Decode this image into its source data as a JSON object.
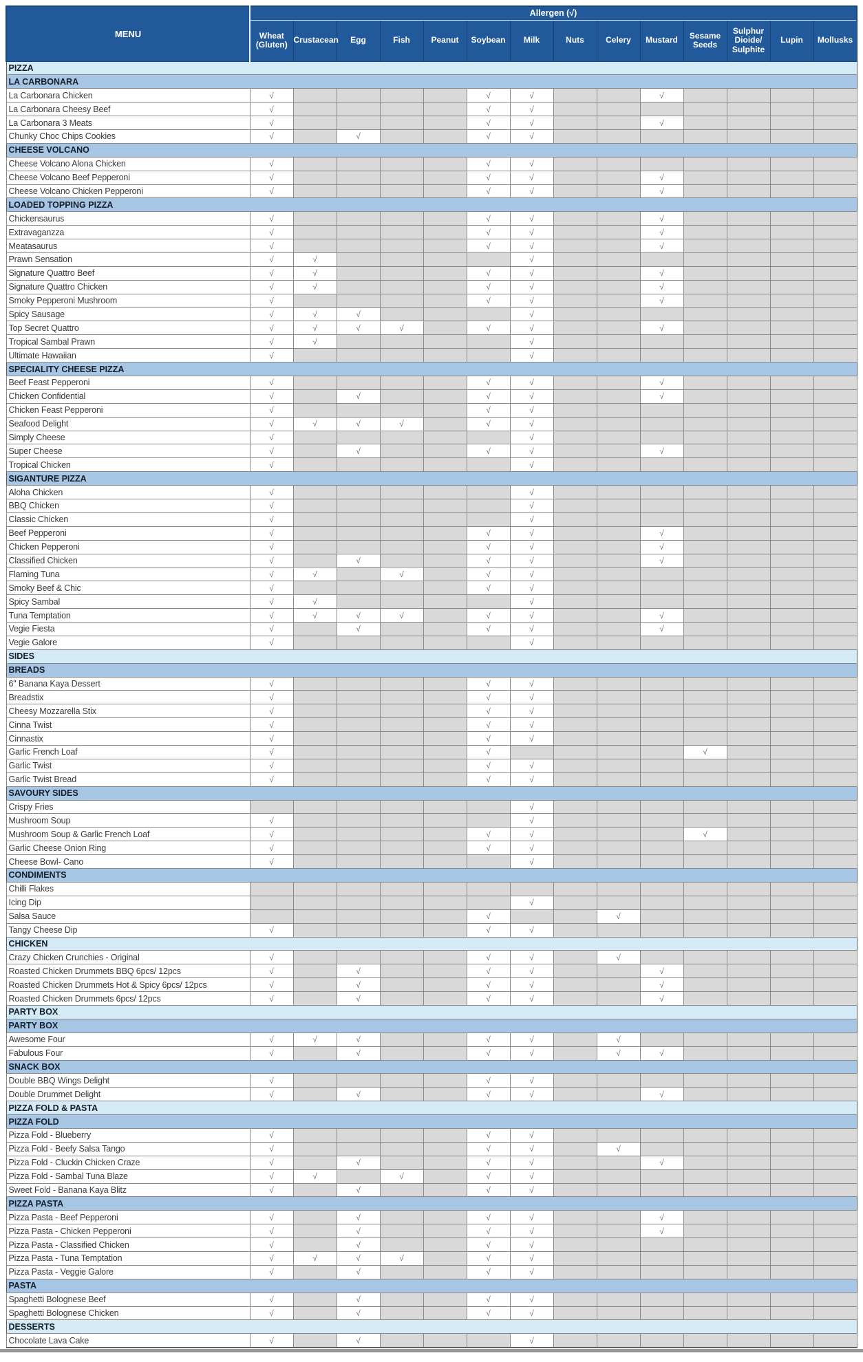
{
  "table": {
    "menu_header": "MENU",
    "allergen_header": "Allergen (√)",
    "check_symbol": "√",
    "columns": [
      "Wheat (Gluten)",
      "Crustacean",
      "Egg",
      "Fish",
      "Peanut",
      "Soybean",
      "Milk",
      "Nuts",
      "Celery",
      "Mustard",
      "Sesame Seeds",
      "Sulphur Dioide/ Sulphite",
      "Lupin",
      "Mollusks"
    ],
    "colors": {
      "header_blue": "#21599A",
      "section_light_blue": "#D4EAF6",
      "section_medium_blue": "#A6C6E4",
      "empty_cell_gray": "#D9D9D9",
      "checked_cell_white": "#FFFFFF",
      "grid_line_gray": "#8A8A8A",
      "check_mark_gray": "#6F6F6F",
      "header_text_white": "#FFFFFF"
    },
    "rows": [
      {
        "type": "section-light",
        "label": "PIZZA"
      },
      {
        "type": "section-blue",
        "label": "LA CARBONARA"
      },
      {
        "type": "item",
        "label": "La Carbonara Chicken",
        "checks": [
          0,
          5,
          6,
          9
        ]
      },
      {
        "type": "item",
        "label": "La Carbonara Cheesy Beef",
        "checks": [
          0,
          5,
          6
        ]
      },
      {
        "type": "item",
        "label": "La Carbonara 3 Meats",
        "checks": [
          0,
          5,
          6,
          9
        ]
      },
      {
        "type": "item",
        "label": "Chunky Choc Chips Cookies",
        "checks": [
          0,
          2,
          5,
          6
        ]
      },
      {
        "type": "section-blue",
        "label": "CHEESE VOLCANO"
      },
      {
        "type": "item",
        "label": "Cheese Volcano Alona Chicken",
        "checks": [
          0,
          5,
          6
        ]
      },
      {
        "type": "item",
        "label": "Cheese Volcano Beef Pepperoni",
        "checks": [
          0,
          5,
          6,
          9
        ]
      },
      {
        "type": "item",
        "label": "Cheese Volcano Chicken Pepperoni",
        "checks": [
          0,
          5,
          6,
          9
        ]
      },
      {
        "type": "section-blue",
        "label": "LOADED TOPPING PIZZA"
      },
      {
        "type": "item",
        "label": "Chickensaurus",
        "checks": [
          0,
          5,
          6,
          9
        ]
      },
      {
        "type": "item",
        "label": "Extravaganzza",
        "checks": [
          0,
          5,
          6,
          9
        ]
      },
      {
        "type": "item",
        "label": "Meatasaurus",
        "checks": [
          0,
          5,
          6,
          9
        ]
      },
      {
        "type": "item",
        "label": "Prawn Sensation",
        "checks": [
          0,
          1,
          6
        ]
      },
      {
        "type": "item",
        "label": "Signature Quattro Beef",
        "checks": [
          0,
          1,
          5,
          6,
          9
        ]
      },
      {
        "type": "item",
        "label": "Signature Quattro Chicken",
        "checks": [
          0,
          1,
          5,
          6,
          9
        ]
      },
      {
        "type": "item",
        "label": "Smoky Pepperoni Mushroom",
        "checks": [
          0,
          5,
          6,
          9
        ]
      },
      {
        "type": "item",
        "label": "Spicy Sausage",
        "checks": [
          0,
          1,
          2,
          6
        ]
      },
      {
        "type": "item",
        "label": "Top Secret Quattro",
        "checks": [
          0,
          1,
          2,
          3,
          5,
          6,
          9
        ]
      },
      {
        "type": "item",
        "label": "Tropical Sambal Prawn",
        "checks": [
          0,
          1,
          6
        ]
      },
      {
        "type": "item",
        "label": "Ultimate Hawaiian",
        "checks": [
          0,
          6
        ]
      },
      {
        "type": "section-blue",
        "label": "SPECIALITY CHEESE PIZZA"
      },
      {
        "type": "item",
        "label": "Beef Feast Pepperoni",
        "checks": [
          0,
          5,
          6,
          9
        ]
      },
      {
        "type": "item",
        "label": "Chicken Confidential",
        "checks": [
          0,
          2,
          5,
          6,
          9
        ]
      },
      {
        "type": "item",
        "label": "Chicken Feast Pepperoni",
        "checks": [
          0,
          5,
          6
        ]
      },
      {
        "type": "item",
        "label": "Seafood Delight",
        "checks": [
          0,
          1,
          2,
          3,
          5,
          6
        ]
      },
      {
        "type": "item",
        "label": "Simply Cheese",
        "checks": [
          0,
          6
        ]
      },
      {
        "type": "item",
        "label": "Super Cheese",
        "checks": [
          0,
          2,
          5,
          6,
          9
        ]
      },
      {
        "type": "item",
        "label": "Tropical Chicken",
        "checks": [
          0,
          6
        ]
      },
      {
        "type": "section-blue",
        "label": "SIGANTURE PIZZA"
      },
      {
        "type": "item",
        "label": "Aloha Chicken",
        "checks": [
          0,
          6
        ]
      },
      {
        "type": "item",
        "label": "BBQ Chicken",
        "checks": [
          0,
          6
        ]
      },
      {
        "type": "item",
        "label": "Classic Chicken",
        "checks": [
          0,
          6
        ]
      },
      {
        "type": "item",
        "label": "Beef Pepperoni",
        "checks": [
          0,
          5,
          6,
          9
        ]
      },
      {
        "type": "item",
        "label": "Chicken Pepperoni",
        "checks": [
          0,
          5,
          6,
          9
        ]
      },
      {
        "type": "item",
        "label": "Classified Chicken",
        "checks": [
          0,
          2,
          5,
          6,
          9
        ]
      },
      {
        "type": "item",
        "label": "Flaming Tuna",
        "checks": [
          0,
          1,
          3,
          5,
          6
        ]
      },
      {
        "type": "item",
        "label": "Smoky Beef & Chic",
        "checks": [
          0,
          5,
          6
        ]
      },
      {
        "type": "item",
        "label": "Spicy Sambal",
        "checks": [
          0,
          1,
          6
        ]
      },
      {
        "type": "item",
        "label": "Tuna Temptation",
        "checks": [
          0,
          1,
          2,
          3,
          5,
          6,
          9
        ]
      },
      {
        "type": "item",
        "label": "Vegie Fiesta",
        "checks": [
          0,
          2,
          5,
          6,
          9
        ]
      },
      {
        "type": "item",
        "label": "Vegie Galore",
        "checks": [
          0,
          6
        ]
      },
      {
        "type": "section-light",
        "label": "SIDES"
      },
      {
        "type": "section-blue",
        "label": "BREADS"
      },
      {
        "type": "item",
        "label": "6\" Banana Kaya Dessert",
        "checks": [
          0,
          5,
          6
        ]
      },
      {
        "type": "item",
        "label": "Breadstix",
        "checks": [
          0,
          5,
          6
        ]
      },
      {
        "type": "item",
        "label": "Cheesy Mozzarella Stix",
        "checks": [
          0,
          5,
          6
        ]
      },
      {
        "type": "item",
        "label": "Cinna Twist",
        "checks": [
          0,
          5,
          6
        ]
      },
      {
        "type": "item",
        "label": "Cinnastix",
        "checks": [
          0,
          5,
          6
        ]
      },
      {
        "type": "item",
        "label": "Garlic French Loaf",
        "checks": [
          0,
          5,
          10
        ]
      },
      {
        "type": "item",
        "label": "Garlic Twist",
        "checks": [
          0,
          5,
          6
        ]
      },
      {
        "type": "item",
        "label": "Garlic Twist Bread",
        "checks": [
          0,
          5,
          6
        ]
      },
      {
        "type": "section-blue",
        "label": "SAVOURY SIDES"
      },
      {
        "type": "item",
        "label": "Crispy Fries",
        "checks": [
          6
        ]
      },
      {
        "type": "item",
        "label": "Mushroom Soup",
        "checks": [
          0,
          6
        ]
      },
      {
        "type": "item",
        "label": "Mushroom Soup & Garlic French Loaf",
        "checks": [
          0,
          5,
          6,
          10
        ]
      },
      {
        "type": "item",
        "label": "Garlic Cheese Onion Ring",
        "checks": [
          0,
          5,
          6
        ]
      },
      {
        "type": "item",
        "label": "Cheese Bowl- Cano",
        "checks": [
          0,
          6
        ]
      },
      {
        "type": "section-blue",
        "label": "CONDIMENTS"
      },
      {
        "type": "item",
        "label": "Chilli Flakes",
        "checks": []
      },
      {
        "type": "item",
        "label": "Icing Dip",
        "checks": [
          6
        ]
      },
      {
        "type": "item",
        "label": "Salsa Sauce",
        "checks": [
          5,
          8
        ]
      },
      {
        "type": "item",
        "label": "Tangy Cheese Dip",
        "checks": [
          0,
          5,
          6
        ]
      },
      {
        "type": "section-light",
        "label": "CHICKEN"
      },
      {
        "type": "item",
        "label": "Crazy Chicken Crunchies - Original",
        "checks": [
          0,
          5,
          6,
          8
        ]
      },
      {
        "type": "item",
        "label": "Roasted Chicken Drummets BBQ 6pcs/ 12pcs",
        "checks": [
          0,
          2,
          5,
          6,
          9
        ]
      },
      {
        "type": "item",
        "label": "Roasted Chicken Drummets Hot & Spicy 6pcs/ 12pcs",
        "checks": [
          0,
          2,
          5,
          6,
          9
        ]
      },
      {
        "type": "item",
        "label": "Roasted Chicken Drummets 6pcs/ 12pcs",
        "checks": [
          0,
          2,
          5,
          6,
          9
        ]
      },
      {
        "type": "section-light",
        "label": "PARTY BOX"
      },
      {
        "type": "section-blue",
        "label": "PARTY BOX"
      },
      {
        "type": "item",
        "label": "Awesome Four",
        "checks": [
          0,
          1,
          2,
          5,
          6,
          8
        ]
      },
      {
        "type": "item",
        "label": "Fabulous Four",
        "checks": [
          0,
          2,
          5,
          6,
          8,
          9
        ]
      },
      {
        "type": "section-blue",
        "label": "SNACK BOX"
      },
      {
        "type": "item",
        "label": "Double BBQ Wings Delight",
        "checks": [
          0,
          5,
          6
        ]
      },
      {
        "type": "item",
        "label": "Double Drummet Delight",
        "checks": [
          0,
          2,
          5,
          6,
          9
        ]
      },
      {
        "type": "section-light",
        "label": "PIZZA FOLD & PASTA"
      },
      {
        "type": "section-blue",
        "label": "PIZZA FOLD"
      },
      {
        "type": "item",
        "label": "Pizza Fold - Blueberry",
        "checks": [
          0,
          5,
          6
        ]
      },
      {
        "type": "item",
        "label": "Pizza Fold - Beefy Salsa Tango",
        "checks": [
          0,
          5,
          6,
          8
        ]
      },
      {
        "type": "item",
        "label": "Pizza Fold - Cluckin Chicken Craze",
        "checks": [
          0,
          2,
          5,
          6,
          9
        ]
      },
      {
        "type": "item",
        "label": "Pizza Fold - Sambal Tuna Blaze",
        "checks": [
          0,
          1,
          3,
          5,
          6
        ]
      },
      {
        "type": "item",
        "label": "Sweet Fold - Banana Kaya Blitz",
        "checks": [
          0,
          2,
          5,
          6
        ]
      },
      {
        "type": "section-blue",
        "label": "PIZZA PASTA"
      },
      {
        "type": "item",
        "label": "Pizza Pasta - Beef Pepperoni",
        "checks": [
          0,
          2,
          5,
          6,
          9
        ]
      },
      {
        "type": "item",
        "label": "Pizza Pasta - Chicken Pepperoni",
        "checks": [
          0,
          2,
          5,
          6,
          9
        ]
      },
      {
        "type": "item",
        "label": "Pizza Pasta - Classified Chicken",
        "checks": [
          0,
          2,
          5,
          6
        ]
      },
      {
        "type": "item",
        "label": "Pizza Pasta - Tuna Temptation",
        "checks": [
          0,
          1,
          2,
          3,
          5,
          6
        ]
      },
      {
        "type": "item",
        "label": "Pizza Pasta - Veggie Galore",
        "checks": [
          0,
          2,
          5,
          6
        ]
      },
      {
        "type": "section-blue",
        "label": "PASTA"
      },
      {
        "type": "item",
        "label": "Spaghetti Bolognese Beef",
        "checks": [
          0,
          2,
          5,
          6
        ]
      },
      {
        "type": "item",
        "label": "Spaghetti Bolognese Chicken",
        "checks": [
          0,
          2,
          5,
          6
        ]
      },
      {
        "type": "section-light",
        "label": "DESSERTS"
      },
      {
        "type": "item",
        "label": "Chocolate Lava Cake",
        "checks": [
          0,
          2,
          6
        ]
      }
    ]
  }
}
